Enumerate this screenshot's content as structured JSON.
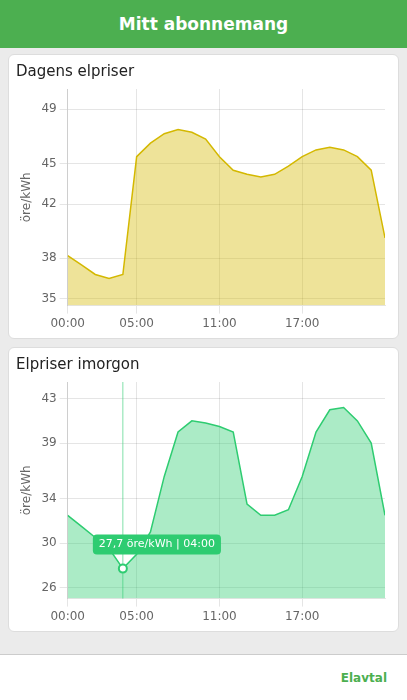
{
  "title": "Mitt abonnemang",
  "annotations": [
    "Elavtal"
  ],
  "chart_data": [
    {
      "type": "line",
      "title": "Dagens elpriser",
      "ylabel": "öre/kWh",
      "x": [
        0,
        1,
        2,
        3,
        4,
        5,
        6,
        7,
        8,
        9,
        10,
        11,
        12,
        13,
        14,
        15,
        16,
        17,
        18,
        19,
        20,
        21,
        22,
        23
      ],
      "values": [
        38.2,
        37.5,
        36.8,
        36.5,
        36.8,
        45.5,
        46.5,
        47.2,
        47.5,
        47.3,
        46.8,
        45.5,
        44.5,
        44.2,
        44.0,
        44.2,
        44.8,
        45.5,
        46.0,
        46.2,
        46.0,
        45.5,
        44.5,
        39.5
      ],
      "color": "#D4B800",
      "xlim": [
        0,
        23
      ],
      "xticks": [
        {
          "value": 0,
          "label": "00:00"
        },
        {
          "value": 5,
          "label": "05:00"
        },
        {
          "value": 11,
          "label": "11:00"
        },
        {
          "value": 17,
          "label": "17:00"
        }
      ],
      "ylim": [
        34.5,
        50.5
      ],
      "yticks": [
        35,
        38,
        42,
        45,
        49
      ],
      "grid": true
    },
    {
      "type": "line",
      "title": "Elpriser imorgon",
      "ylabel": "öre/kWh",
      "x": [
        0,
        1,
        2,
        3,
        4,
        5,
        6,
        7,
        8,
        9,
        10,
        11,
        12,
        13,
        14,
        15,
        16,
        17,
        18,
        19,
        20,
        21,
        22,
        23
      ],
      "values": [
        32.5,
        31.5,
        30.5,
        29.5,
        27.7,
        29.0,
        31.0,
        36.0,
        40.0,
        41.0,
        40.8,
        40.5,
        40.0,
        33.5,
        32.5,
        32.5,
        33.0,
        36.0,
        40.0,
        42.0,
        42.2,
        41.0,
        39.0,
        32.5
      ],
      "color": "#2ECC71",
      "xlim": [
        0,
        23
      ],
      "xticks": [
        {
          "value": 0,
          "label": "00:00"
        },
        {
          "value": 5,
          "label": "05:00"
        },
        {
          "value": 11,
          "label": "11:00"
        },
        {
          "value": 17,
          "label": "17:00"
        }
      ],
      "ylim": [
        25.0,
        44.5
      ],
      "yticks": [
        26,
        30,
        34,
        39,
        43
      ],
      "grid": true,
      "annotations": [
        {
          "text": "27,7 öre/kWh | 04:00",
          "x": 4,
          "y": 27.7
        }
      ]
    }
  ]
}
